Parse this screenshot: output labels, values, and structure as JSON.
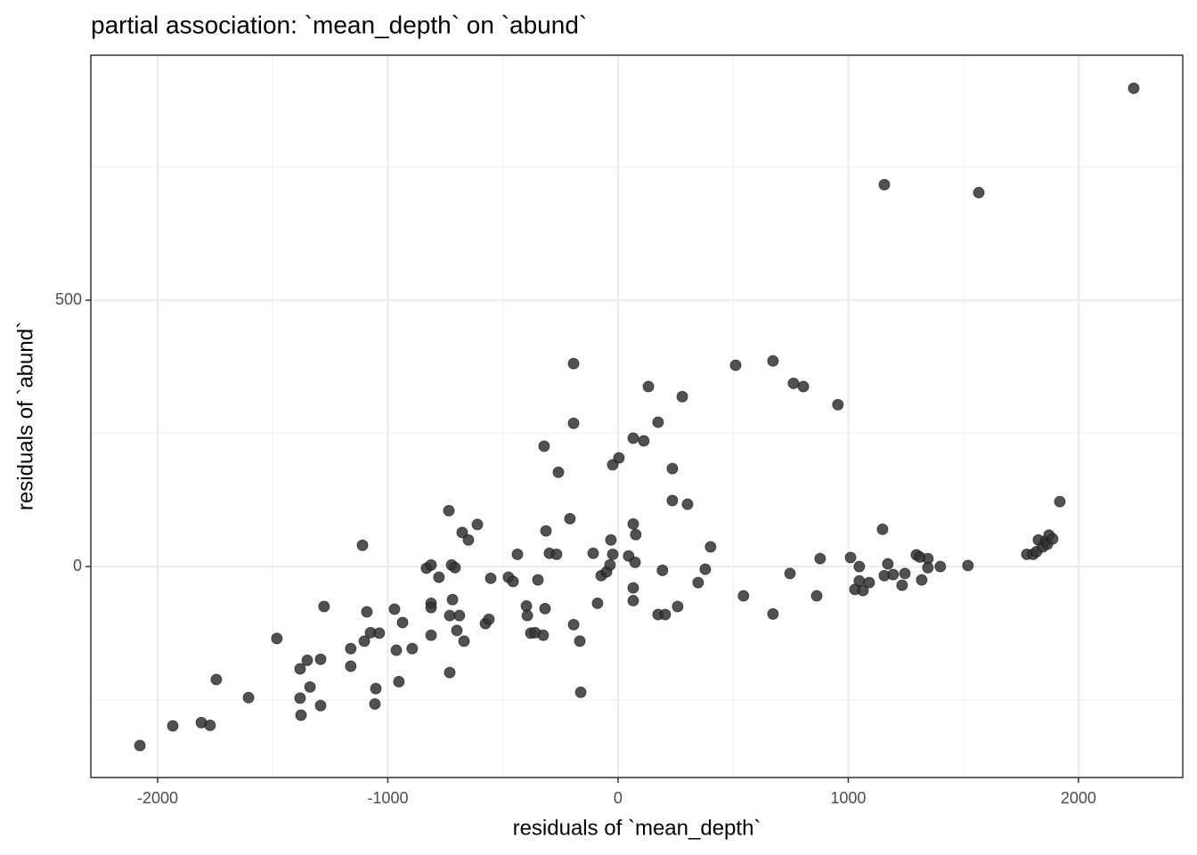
{
  "chart_data": {
    "type": "scatter",
    "title": "partial association: `mean_depth` on `abund`",
    "x_label": "residuals of `mean_depth`",
    "y_label": "residuals of `abund`",
    "xlim": [
      -2290,
      2453
    ],
    "ylim": [
      -396,
      960
    ],
    "xticks": [
      -2000,
      -1000,
      0,
      1000,
      2000
    ],
    "yticks": [
      0,
      500
    ],
    "grid": true,
    "color": "#333333",
    "x": [
      2240,
      1157,
      1567,
      -2077,
      -1934,
      -1810,
      -1772,
      -1745,
      -1605,
      -1482,
      -1381,
      -1350,
      -1338,
      -1381,
      -1377,
      -1292,
      -1292,
      -1277,
      -1161,
      -1161,
      -1110,
      -1102,
      -1091,
      -1075,
      -1052,
      -1056,
      -1037,
      -971,
      -963,
      -952,
      -936,
      -894,
      -832,
      -812,
      -812,
      -812,
      -812,
      -778,
      -735,
      -731,
      -731,
      -723,
      -719,
      -708,
      -700,
      -689,
      -677,
      -669,
      -650,
      -611,
      -576,
      -561,
      -553,
      -476,
      -456,
      -437,
      -398,
      -394,
      -379,
      -360,
      -348,
      -325,
      -317,
      -321,
      -313,
      -298,
      -267,
      -259,
      -209,
      -193,
      -193,
      -193,
      -166,
      -162,
      -108,
      -89,
      -73,
      -50,
      -35,
      -31,
      -23,
      -23,
      4,
      46,
      66,
      66,
      66,
      66,
      74,
      77,
      112,
      132,
      174,
      174,
      193,
      205,
      236,
      236,
      259,
      279,
      302,
      348,
      379,
      402,
      511,
      545,
      673,
      673,
      747,
      762,
      805,
      863,
      878,
      955,
      1010,
      1029,
      1048,
      1048,
      1064,
      1091,
      1149,
      1157,
      1172,
      1195,
      1234,
      1246,
      1296,
      1311,
      1319,
      1346,
      1346,
      1400,
      1520,
      1776,
      1803,
      1818,
      1826,
      1845,
      1857,
      1865,
      1872,
      1888,
      1919
    ],
    "values": [
      898,
      717,
      702,
      -336,
      -299,
      -293,
      -298,
      -212,
      -246,
      -135,
      -192,
      -176,
      -226,
      -247,
      -279,
      -174,
      -261,
      -75,
      -154,
      -187,
      40,
      -140,
      -85,
      -124,
      -229,
      -258,
      -125,
      -80,
      -157,
      -216,
      -105,
      -154,
      -3,
      3,
      -69,
      -77,
      -129,
      -20,
      105,
      -92,
      -199,
      3,
      -62,
      -2,
      -120,
      -92,
      64,
      -140,
      50,
      79,
      -107,
      -99,
      -22,
      -20,
      -28,
      23,
      -74,
      -92,
      -125,
      -124,
      -25,
      -129,
      -79,
      226,
      67,
      25,
      23,
      177,
      90,
      381,
      269,
      -109,
      -140,
      -236,
      25,
      -69,
      -17,
      -10,
      3,
      50,
      191,
      23,
      204,
      20,
      241,
      80,
      -40,
      -64,
      8,
      60,
      236,
      338,
      271,
      -90,
      -7,
      -90,
      184,
      124,
      -75,
      319,
      117,
      -30,
      -5,
      37,
      378,
      -55,
      386,
      -89,
      -13,
      344,
      338,
      -55,
      15,
      304,
      17,
      -43,
      0,
      -27,
      -45,
      -30,
      70,
      -17,
      5,
      -15,
      -35,
      -13,
      22,
      18,
      -25,
      15,
      -2,
      0,
      2,
      23,
      23,
      28,
      50,
      37,
      47,
      42,
      59,
      52,
      122
    ]
  }
}
